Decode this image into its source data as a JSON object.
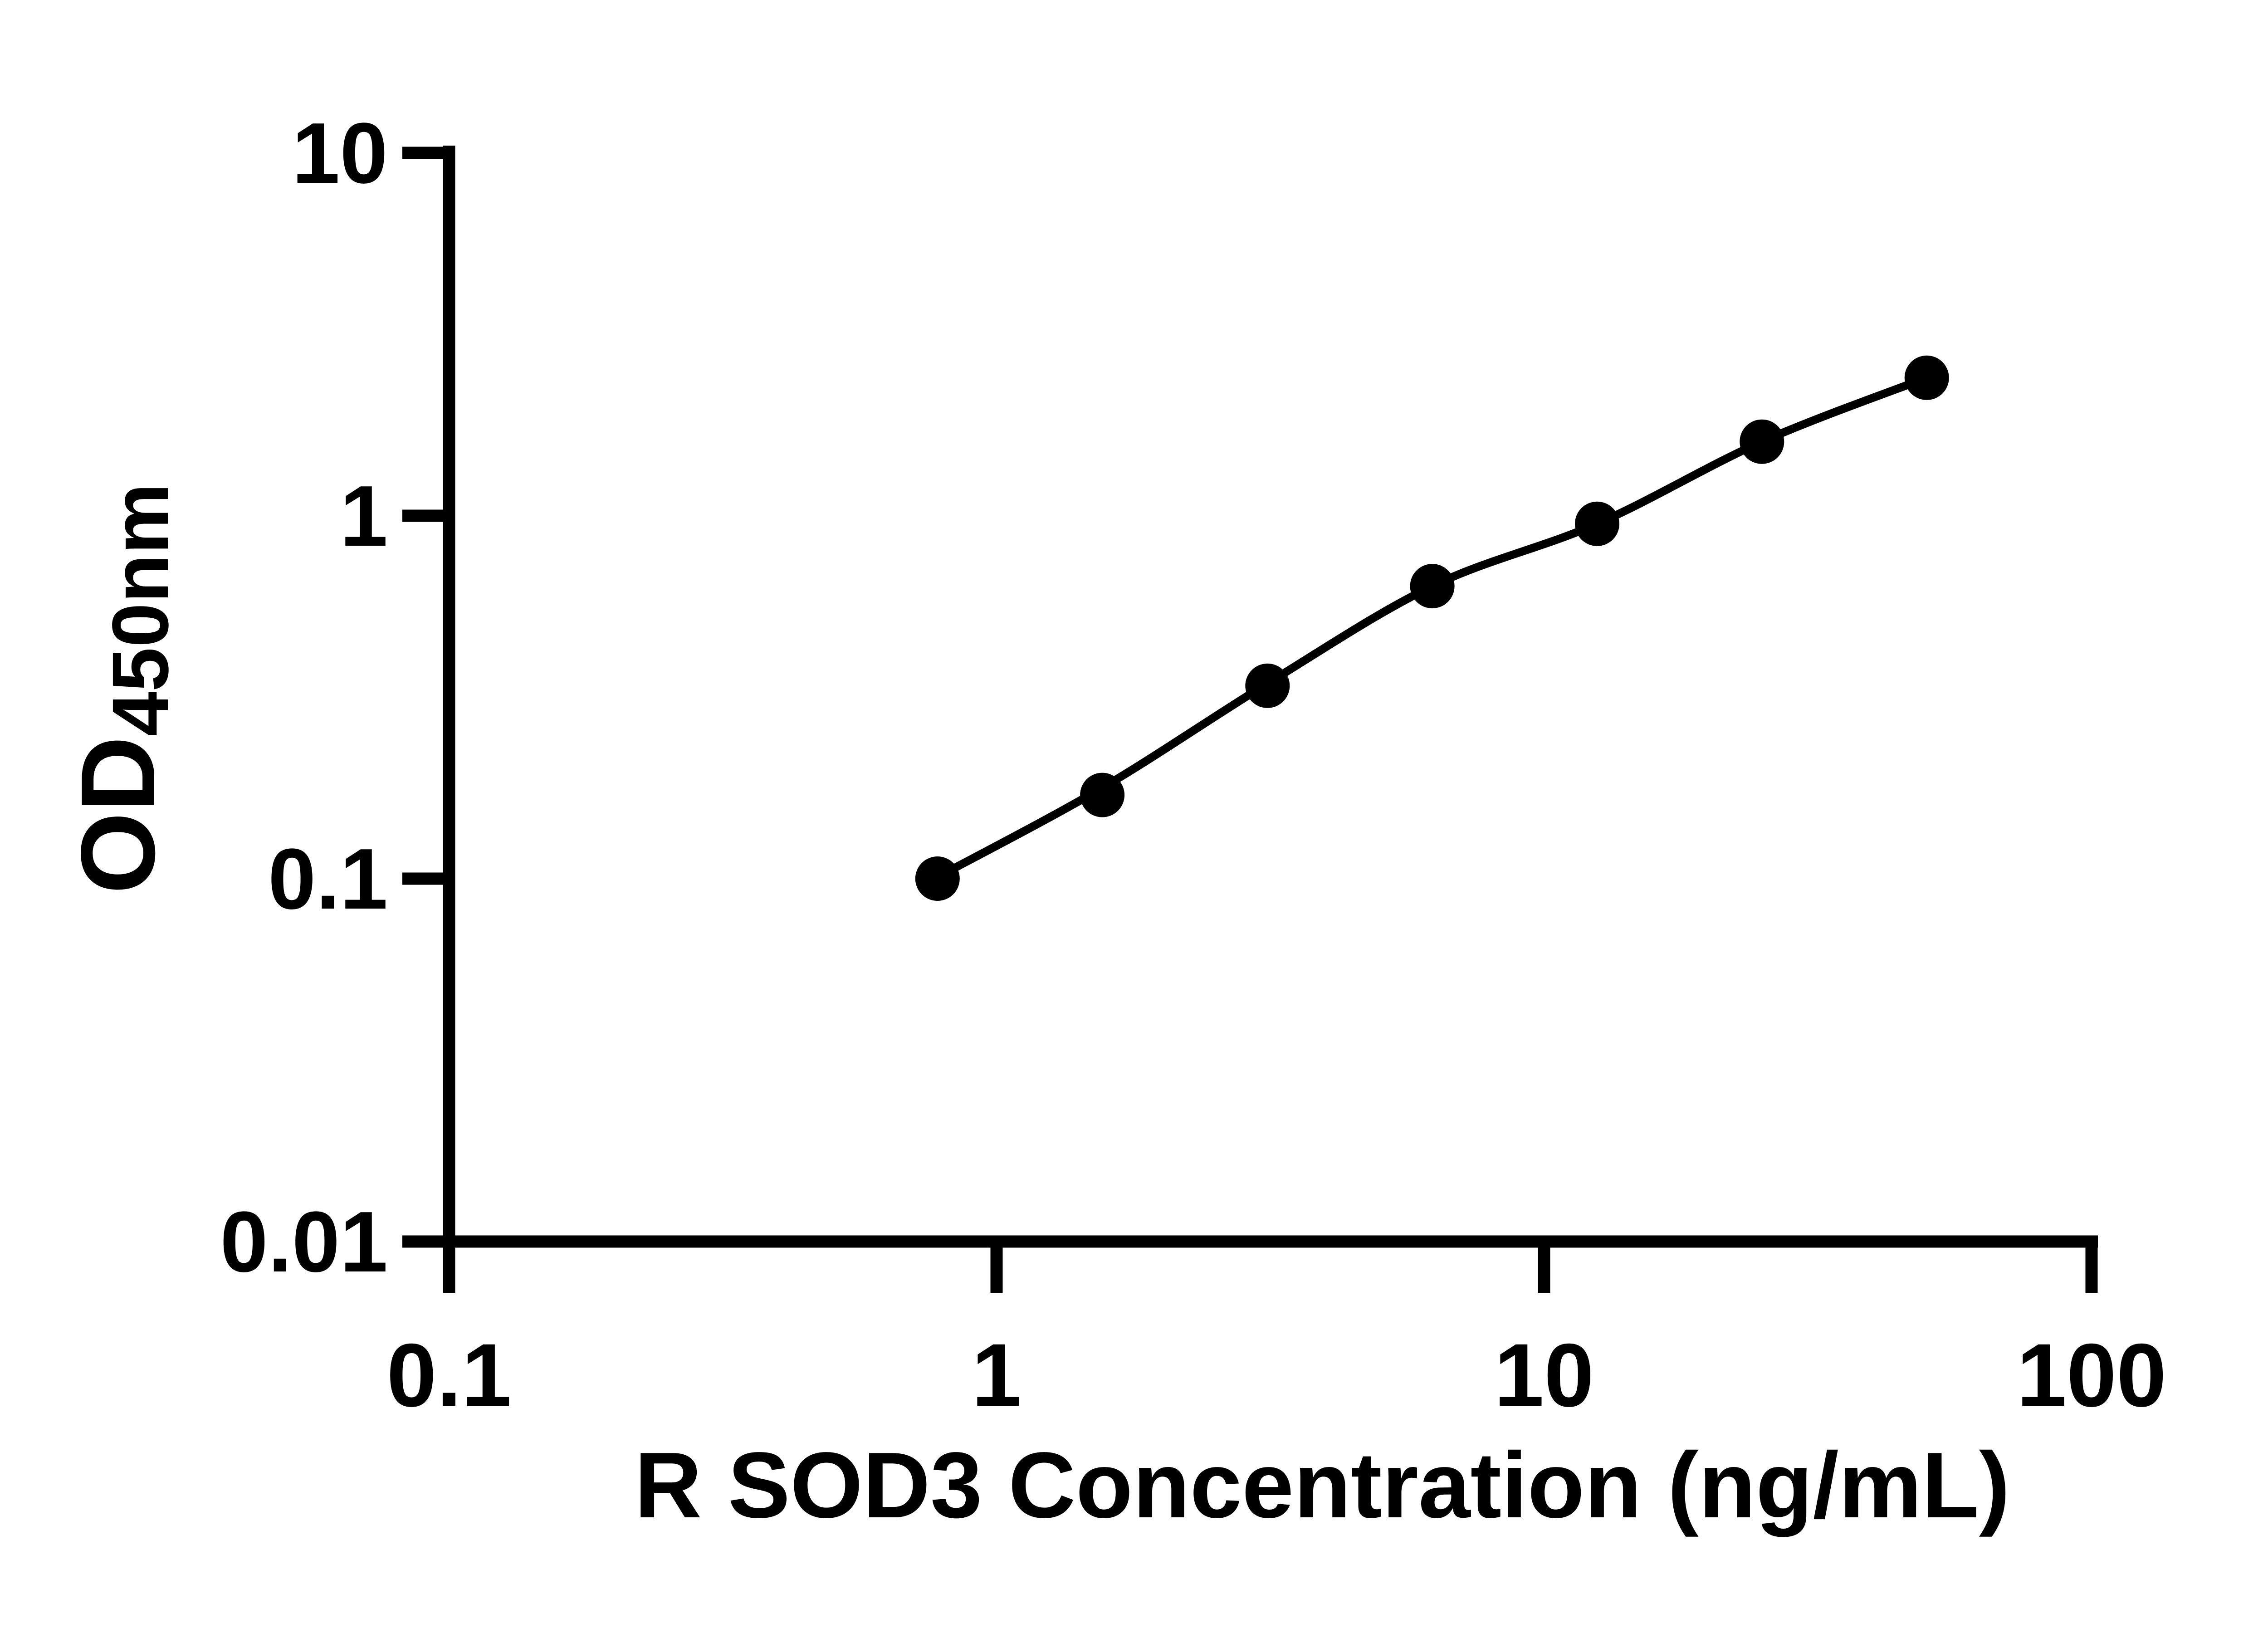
{
  "figure": {
    "background_color": "#ffffff",
    "ink_color": "#000000",
    "description": "ELISA standard curve, log-log scatter plot with fitted line"
  },
  "chart_data": {
    "type": "scatter",
    "title": "",
    "xlabel": "R SOD3 Concentration (ng/mL)",
    "ylabel_main": "OD",
    "ylabel_sub": "450nm",
    "x_scale": "log",
    "y_scale": "log",
    "xlim": [
      0.1,
      100
    ],
    "ylim": [
      0.01,
      10
    ],
    "grid": false,
    "legend_position": "none",
    "x_ticks": {
      "values": [
        0.1,
        1,
        10,
        100
      ],
      "labels": [
        "0.1",
        "1",
        "10",
        "100"
      ]
    },
    "y_ticks": {
      "values": [
        10,
        1,
        0.1,
        0.01
      ],
      "labels": [
        "10",
        "1",
        "0.1",
        "0.01"
      ]
    },
    "series": [
      {
        "name": "standard-data-points",
        "type": "scatter",
        "marker": "filled-circle",
        "color": "#000000",
        "x": [
          0.78,
          1.56,
          3.125,
          6.25,
          12.5,
          25,
          50
        ],
        "od": [
          0.1,
          0.17,
          0.34,
          0.64,
          0.95,
          1.6,
          2.4
        ]
      },
      {
        "name": "fitted-standard-curve",
        "type": "line",
        "color": "#000000",
        "x": [
          0.78,
          1.56,
          3.125,
          6.25,
          12.5,
          25,
          50
        ],
        "od": [
          0.101,
          0.178,
          0.345,
          0.64,
          0.95,
          1.6,
          2.4
        ]
      }
    ]
  }
}
